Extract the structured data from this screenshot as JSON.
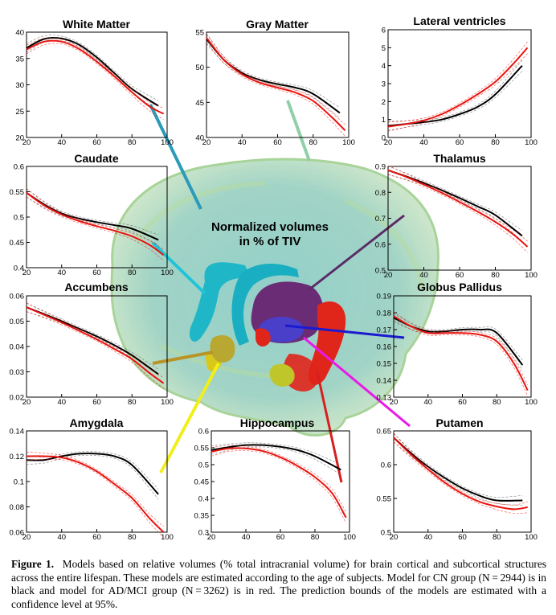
{
  "center_label": [
    "Normalized volumes",
    "in % of TIV"
  ],
  "caption": {
    "label": "Figure 1.",
    "text": "Models based on relative volumes (% total intracranial volume) for brain cortical and subcortical structures across the entire lifespan. These models are estimated according to the age of subjects. Model for CN group (N = 2944) is in black and model for AD/MCI group (N = 3262) is in red. The prediction bounds of the models are estimated with a confidence level at 95%."
  },
  "colors": {
    "cn": "#000000",
    "ad": "#e8140e",
    "bounds": "#777777"
  },
  "chart_data": [
    {
      "type": "line",
      "title": "White Matter",
      "xlim": [
        20,
        100
      ],
      "ylim": [
        20,
        40
      ],
      "xticks": [
        "20",
        "40",
        "60",
        "80",
        "100"
      ],
      "yticks": [
        "20",
        "25",
        "30",
        "35",
        "40"
      ],
      "series": [
        {
          "group": "cn",
          "x": [
            20,
            30,
            40,
            50,
            60,
            70,
            80,
            95
          ],
          "y": [
            37,
            38.7,
            38.8,
            37.6,
            35.2,
            32.2,
            29.2,
            26.0
          ]
        },
        {
          "group": "ad",
          "x": [
            20,
            30,
            40,
            50,
            60,
            70,
            80,
            90,
            98
          ],
          "y": [
            36.7,
            38.2,
            38.2,
            36.8,
            34.4,
            31.6,
            28.6,
            25.9,
            24.5
          ]
        }
      ]
    },
    {
      "type": "line",
      "title": "Gray Matter",
      "xlim": [
        20,
        100
      ],
      "ylim": [
        40,
        55
      ],
      "xticks": [
        "20",
        "40",
        "60",
        "80",
        "100"
      ],
      "yticks": [
        "40",
        "45",
        "50",
        "55"
      ],
      "series": [
        {
          "group": "cn",
          "x": [
            20,
            30,
            40,
            50,
            60,
            70,
            80,
            95
          ],
          "y": [
            54,
            51,
            49.2,
            48.2,
            47.6,
            47.1,
            46.2,
            43.5
          ]
        },
        {
          "group": "ad",
          "x": [
            20,
            30,
            40,
            50,
            60,
            70,
            80,
            90,
            98
          ],
          "y": [
            54.2,
            51,
            49,
            47.8,
            47.1,
            46.4,
            45.2,
            43.0,
            41.0
          ]
        }
      ]
    },
    {
      "type": "line",
      "title": "Lateral ventricles",
      "xlim": [
        20,
        100
      ],
      "ylim": [
        0,
        6
      ],
      "xticks": [
        "20",
        "40",
        "60",
        "80",
        "100"
      ],
      "yticks": [
        "0",
        "1",
        "2",
        "3",
        "4",
        "5",
        "6"
      ],
      "series": [
        {
          "group": "cn",
          "x": [
            20,
            30,
            40,
            50,
            60,
            70,
            80,
            95
          ],
          "y": [
            0.65,
            0.75,
            0.85,
            1.0,
            1.3,
            1.7,
            2.4,
            4.0
          ]
        },
        {
          "group": "ad",
          "x": [
            20,
            30,
            40,
            50,
            60,
            70,
            80,
            90,
            98
          ],
          "y": [
            0.6,
            0.75,
            0.95,
            1.3,
            1.8,
            2.4,
            3.1,
            4.1,
            5.0
          ]
        }
      ]
    },
    {
      "type": "line",
      "title": "Caudate",
      "xlim": [
        20,
        100
      ],
      "ylim": [
        0.4,
        0.6
      ],
      "xticks": [
        "20",
        "40",
        "60",
        "80",
        "100"
      ],
      "yticks": [
        "0.4",
        "0.45",
        "0.5",
        "0.55",
        "0.6"
      ],
      "series": [
        {
          "group": "cn",
          "x": [
            20,
            30,
            40,
            50,
            60,
            70,
            80,
            95
          ],
          "y": [
            0.548,
            0.525,
            0.507,
            0.497,
            0.49,
            0.484,
            0.477,
            0.455
          ]
        },
        {
          "group": "ad",
          "x": [
            20,
            30,
            40,
            50,
            60,
            70,
            80,
            90,
            98
          ],
          "y": [
            0.548,
            0.523,
            0.505,
            0.492,
            0.482,
            0.473,
            0.462,
            0.445,
            0.425
          ]
        }
      ]
    },
    {
      "type": "line",
      "title": "Thalamus",
      "xlim": [
        20,
        100
      ],
      "ylim": [
        0.5,
        0.9
      ],
      "xticks": [
        "20",
        "40",
        "60",
        "80",
        "100"
      ],
      "yticks": [
        "0.5",
        "0.6",
        "0.7",
        "0.8",
        "0.9"
      ],
      "series": [
        {
          "group": "cn",
          "x": [
            20,
            30,
            40,
            50,
            60,
            70,
            80,
            95
          ],
          "y": [
            0.885,
            0.862,
            0.836,
            0.808,
            0.778,
            0.746,
            0.712,
            0.632
          ]
        },
        {
          "group": "ad",
          "x": [
            20,
            30,
            40,
            50,
            60,
            70,
            80,
            90,
            98
          ],
          "y": [
            0.885,
            0.86,
            0.83,
            0.798,
            0.763,
            0.726,
            0.686,
            0.638,
            0.59
          ]
        }
      ]
    },
    {
      "type": "line",
      "title": "Accumbens",
      "xlim": [
        20,
        100
      ],
      "ylim": [
        0.02,
        0.06
      ],
      "xticks": [
        "20",
        "40",
        "60",
        "80",
        "100"
      ],
      "yticks": [
        "0.02",
        "0.03",
        "0.04",
        "0.05",
        "0.06"
      ],
      "series": [
        {
          "group": "cn",
          "x": [
            20,
            30,
            40,
            50,
            60,
            70,
            80,
            95
          ],
          "y": [
            0.0555,
            0.0528,
            0.05,
            0.047,
            0.044,
            0.0405,
            0.0365,
            0.029
          ]
        },
        {
          "group": "ad",
          "x": [
            20,
            30,
            40,
            50,
            60,
            70,
            80,
            90,
            98
          ],
          "y": [
            0.0555,
            0.0525,
            0.0495,
            0.0462,
            0.0428,
            0.039,
            0.035,
            0.0295,
            0.0255
          ]
        }
      ]
    },
    {
      "type": "line",
      "title": "Globus Pallidus",
      "xlim": [
        20,
        100
      ],
      "ylim": [
        0.13,
        0.19
      ],
      "xticks": [
        "20",
        "40",
        "60",
        "80",
        "100"
      ],
      "yticks": [
        "0.13",
        "0.14",
        "0.15",
        "0.16",
        "0.17",
        "0.18",
        "0.19"
      ],
      "series": [
        {
          "group": "cn",
          "x": [
            20,
            30,
            40,
            50,
            60,
            70,
            80,
            95
          ],
          "y": [
            0.177,
            0.172,
            0.169,
            0.169,
            0.17,
            0.17,
            0.168,
            0.149
          ]
        },
        {
          "group": "ad",
          "x": [
            20,
            30,
            40,
            50,
            60,
            70,
            80,
            90,
            98
          ],
          "y": [
            0.178,
            0.172,
            0.168,
            0.168,
            0.168,
            0.167,
            0.163,
            0.15,
            0.134
          ]
        }
      ]
    },
    {
      "type": "line",
      "title": "Amygdala",
      "xlim": [
        20,
        100
      ],
      "ylim": [
        0.06,
        0.14
      ],
      "xticks": [
        "20",
        "40",
        "60",
        "80",
        "100"
      ],
      "yticks": [
        "0.06",
        "0.08",
        "0.1",
        "0.12",
        "0.14"
      ],
      "series": [
        {
          "group": "cn",
          "x": [
            20,
            30,
            40,
            50,
            60,
            70,
            80,
            95
          ],
          "y": [
            0.117,
            0.117,
            0.12,
            0.122,
            0.122,
            0.12,
            0.113,
            0.09
          ]
        },
        {
          "group": "ad",
          "x": [
            20,
            30,
            40,
            50,
            60,
            70,
            80,
            90,
            98
          ],
          "y": [
            0.12,
            0.12,
            0.119,
            0.115,
            0.108,
            0.098,
            0.087,
            0.071,
            0.06
          ]
        }
      ]
    },
    {
      "type": "line",
      "title": "Hippocampus",
      "xlim": [
        20,
        100
      ],
      "ylim": [
        0.3,
        0.6
      ],
      "xticks": [
        "20",
        "40",
        "60",
        "80",
        "100"
      ],
      "yticks": [
        "0.3",
        "0.35",
        "0.4",
        "0.45",
        "0.5",
        "0.55",
        "0.6"
      ],
      "series": [
        {
          "group": "cn",
          "x": [
            20,
            30,
            40,
            50,
            60,
            70,
            80,
            95
          ],
          "y": [
            0.543,
            0.552,
            0.558,
            0.558,
            0.553,
            0.543,
            0.525,
            0.485
          ]
        },
        {
          "group": "ad",
          "x": [
            20,
            30,
            40,
            50,
            60,
            70,
            80,
            90,
            98
          ],
          "y": [
            0.538,
            0.548,
            0.548,
            0.54,
            0.522,
            0.496,
            0.463,
            0.415,
            0.343
          ]
        }
      ]
    },
    {
      "type": "line",
      "title": "Putamen",
      "xlim": [
        20,
        100
      ],
      "ylim": [
        0.5,
        0.65
      ],
      "xticks": [
        "20",
        "40",
        "60",
        "80",
        "100"
      ],
      "yticks": [
        "0.5",
        "0.55",
        "0.6",
        "0.65"
      ],
      "series": [
        {
          "group": "cn",
          "x": [
            20,
            30,
            40,
            50,
            60,
            70,
            80,
            95
          ],
          "y": [
            0.64,
            0.617,
            0.597,
            0.58,
            0.565,
            0.554,
            0.547,
            0.547
          ]
        },
        {
          "group": "ad",
          "x": [
            20,
            30,
            40,
            50,
            60,
            70,
            80,
            90,
            98
          ],
          "y": [
            0.64,
            0.615,
            0.593,
            0.573,
            0.557,
            0.545,
            0.538,
            0.534,
            0.537
          ]
        }
      ]
    }
  ]
}
